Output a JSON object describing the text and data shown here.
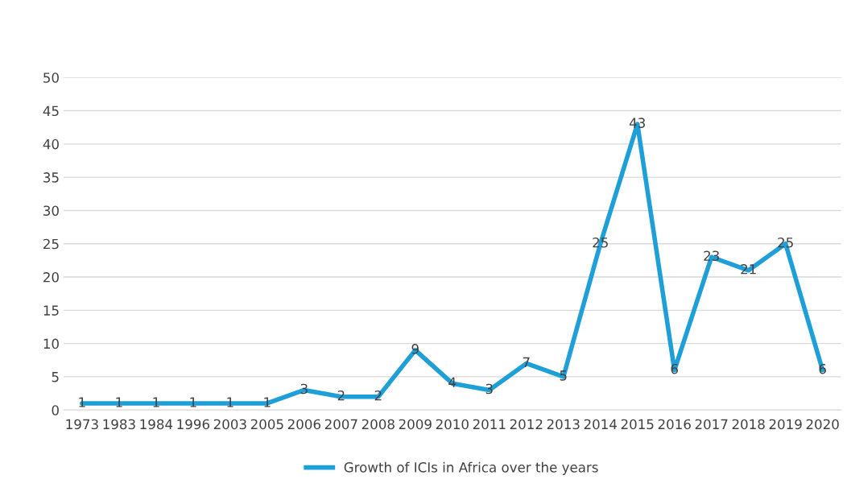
{
  "chart_data": {
    "type": "line",
    "categories": [
      "1973",
      "1983",
      "1984",
      "1996",
      "2003",
      "2005",
      "2006",
      "2007",
      "2008",
      "2009",
      "2010",
      "2011",
      "2012",
      "2013",
      "2014",
      "2015",
      "2016",
      "2017",
      "2018",
      "2019",
      "2020"
    ],
    "series": [
      {
        "name": "Growth of ICIs in Africa over the years",
        "color": "#1f9fd8",
        "values": [
          1,
          1,
          1,
          1,
          1,
          1,
          3,
          2,
          2,
          9,
          4,
          3,
          7,
          5,
          25,
          43,
          6,
          23,
          21,
          25,
          6
        ]
      }
    ],
    "ylim": [
      0,
      50
    ],
    "yticks": [
      0,
      5,
      10,
      15,
      20,
      25,
      30,
      35,
      40,
      45,
      50
    ],
    "grid": "y",
    "legend": "bottom",
    "data_labels": true,
    "marker": "none",
    "line_style": "solid"
  }
}
